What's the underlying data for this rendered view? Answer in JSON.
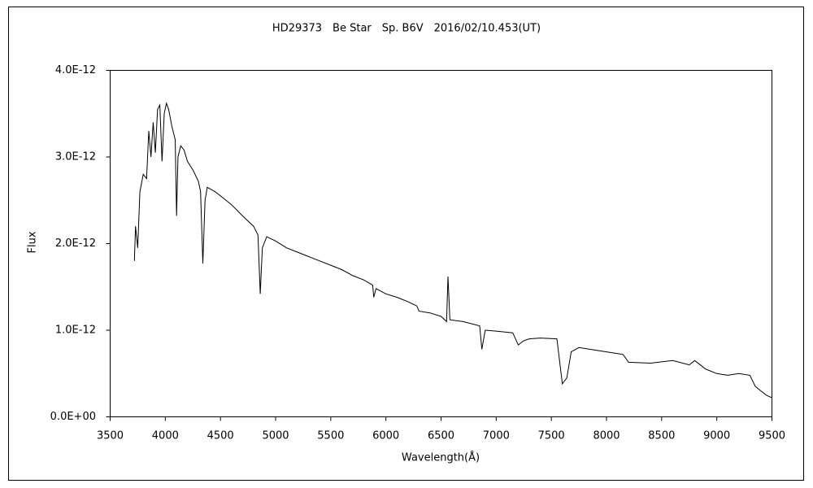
{
  "chart_data": {
    "type": "line",
    "title": "HD29373　Be Star　Sp. B6V　2016/02/10.453(UT)",
    "x_label": "Wavelength(Å)",
    "y_label": "Flux",
    "xlim": [
      3500,
      9500
    ],
    "xticks": [
      3500,
      4000,
      4500,
      5000,
      5500,
      6000,
      6500,
      7000,
      7500,
      8000,
      8500,
      9000,
      9500
    ],
    "ylim": [
      0,
      4e-12
    ],
    "yticks": [
      {
        "value": 0,
        "label": "0.0E+00"
      },
      {
        "value": 1e-12,
        "label": "1.0E-12"
      },
      {
        "value": 2e-12,
        "label": "2.0E-12"
      },
      {
        "value": 3e-12,
        "label": "3.0E-12"
      },
      {
        "value": 4e-12,
        "label": "4.0E-12"
      }
    ],
    "grid": false,
    "series": [
      {
        "color": "#000000",
        "x": [
          3720,
          3730,
          3750,
          3770,
          3800,
          3830,
          3850,
          3870,
          3890,
          3910,
          3930,
          3950,
          3970,
          3990,
          4010,
          4030,
          4060,
          4090,
          4102,
          4115,
          4140,
          4170,
          4200,
          4250,
          4300,
          4320,
          4340,
          4360,
          4380,
          4450,
          4500,
          4600,
          4700,
          4800,
          4840,
          4861,
          4880,
          4920,
          5000,
          5100,
          5200,
          5300,
          5400,
          5500,
          5600,
          5700,
          5800,
          5880,
          5890,
          5910,
          6000,
          6100,
          6200,
          6280,
          6300,
          6400,
          6500,
          6550,
          6563,
          6580,
          6700,
          6850,
          6870,
          6900,
          7000,
          7150,
          7200,
          7250,
          7300,
          7400,
          7550,
          7600,
          7640,
          7680,
          7750,
          7900,
          8000,
          8150,
          8200,
          8400,
          8600,
          8750,
          8800,
          8900,
          9000,
          9100,
          9200,
          9300,
          9350,
          9400,
          9450,
          9500
        ],
        "values": [
          1.8e-12,
          2.2e-12,
          1.95e-12,
          2.6e-12,
          2.8e-12,
          2.75e-12,
          3.3e-12,
          3e-12,
          3.4e-12,
          3.05e-12,
          3.55e-12,
          3.6e-12,
          2.95e-12,
          3.5e-12,
          3.62e-12,
          3.55e-12,
          3.35e-12,
          3.2e-12,
          2.32e-12,
          3e-12,
          3.13e-12,
          3.08e-12,
          2.95e-12,
          2.85e-12,
          2.72e-12,
          2.6e-12,
          1.77e-12,
          2.5e-12,
          2.65e-12,
          2.6e-12,
          2.55e-12,
          2.45e-12,
          2.32e-12,
          2.2e-12,
          2.1e-12,
          1.42e-12,
          1.95e-12,
          2.08e-12,
          2.03e-12,
          1.95e-12,
          1.9e-12,
          1.85e-12,
          1.8e-12,
          1.75e-12,
          1.7e-12,
          1.63e-12,
          1.58e-12,
          1.52e-12,
          1.38e-12,
          1.48e-12,
          1.42e-12,
          1.38e-12,
          1.33e-12,
          1.28e-12,
          1.22e-12,
          1.2e-12,
          1.16e-12,
          1.1e-12,
          1.62e-12,
          1.12e-12,
          1.1e-12,
          1.05e-12,
          7.8e-13,
          1e-12,
          9.9e-13,
          9.7e-13,
          8.3e-13,
          8.8e-13,
          9e-13,
          9.1e-13,
          9e-13,
          3.8e-13,
          4.5e-13,
          7.5e-13,
          8e-13,
          7.7e-13,
          7.5e-13,
          7.2e-13,
          6.3e-13,
          6.2e-13,
          6.5e-13,
          6e-13,
          6.5e-13,
          5.5e-13,
          5e-13,
          4.8e-13,
          5e-13,
          4.8e-13,
          3.5e-13,
          3e-13,
          2.5e-13,
          2.2e-13
        ]
      }
    ]
  }
}
